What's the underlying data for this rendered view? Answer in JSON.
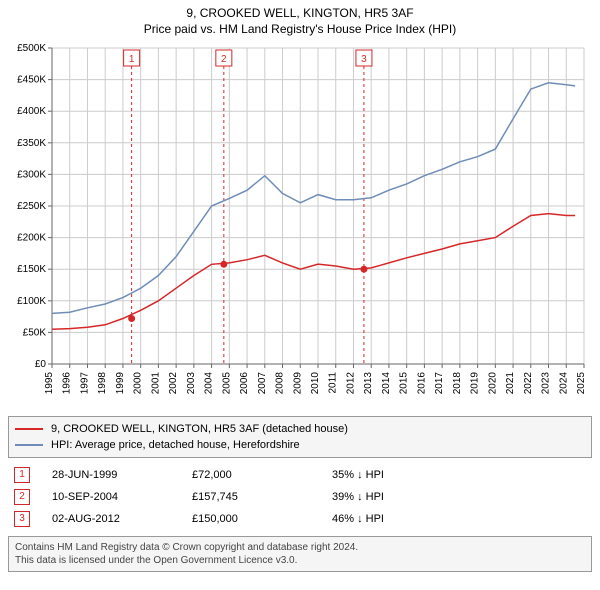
{
  "title": "9, CROOKED WELL, KINGTON, HR5 3AF",
  "subtitle": "Price paid vs. HM Land Registry's House Price Index (HPI)",
  "chart": {
    "type": "line",
    "background_color": "#ffffff",
    "gridline_color": "#cccccc",
    "axis_color": "#666666",
    "text_color": "#000000",
    "title_fontsize": 12,
    "label_fontsize": 10,
    "x_axis": {
      "min": 1995,
      "max": 2025,
      "ticks": [
        1995,
        1996,
        1997,
        1998,
        1999,
        2000,
        2001,
        2002,
        2003,
        2004,
        2005,
        2006,
        2007,
        2008,
        2009,
        2010,
        2011,
        2012,
        2013,
        2014,
        2015,
        2016,
        2017,
        2018,
        2019,
        2020,
        2021,
        2022,
        2023,
        2024,
        2025
      ]
    },
    "y_axis": {
      "min": 0,
      "max": 500000,
      "tick_step": 50000,
      "tick_labels": [
        "£0",
        "£50K",
        "£100K",
        "£150K",
        "£200K",
        "£250K",
        "£300K",
        "£350K",
        "£400K",
        "£450K",
        "£500K"
      ]
    },
    "series": [
      {
        "name": "price_paid",
        "label": "9, CROOKED WELL, KINGTON, HR5 3AF (detached house)",
        "color": "#d62728",
        "line_width": 1.5,
        "data": [
          [
            1995,
            55000
          ],
          [
            1996,
            56000
          ],
          [
            1997,
            58000
          ],
          [
            1998,
            62000
          ],
          [
            1999,
            72000
          ],
          [
            2000,
            85000
          ],
          [
            2001,
            100000
          ],
          [
            2002,
            120000
          ],
          [
            2003,
            140000
          ],
          [
            2004,
            157745
          ],
          [
            2005,
            160000
          ],
          [
            2006,
            165000
          ],
          [
            2007,
            172000
          ],
          [
            2008,
            160000
          ],
          [
            2009,
            150000
          ],
          [
            2010,
            158000
          ],
          [
            2011,
            155000
          ],
          [
            2012,
            150000
          ],
          [
            2013,
            152000
          ],
          [
            2014,
            160000
          ],
          [
            2015,
            168000
          ],
          [
            2016,
            175000
          ],
          [
            2017,
            182000
          ],
          [
            2018,
            190000
          ],
          [
            2019,
            195000
          ],
          [
            2020,
            200000
          ],
          [
            2021,
            218000
          ],
          [
            2022,
            235000
          ],
          [
            2023,
            238000
          ],
          [
            2024,
            235000
          ],
          [
            2024.5,
            235000
          ]
        ]
      },
      {
        "name": "hpi",
        "label": "HPI: Average price, detached house, Herefordshire",
        "color": "#6f8db8",
        "line_width": 1.5,
        "data": [
          [
            1995,
            80000
          ],
          [
            1996,
            82000
          ],
          [
            1997,
            89000
          ],
          [
            1998,
            95000
          ],
          [
            1999,
            105000
          ],
          [
            2000,
            120000
          ],
          [
            2001,
            140000
          ],
          [
            2002,
            170000
          ],
          [
            2003,
            210000
          ],
          [
            2004,
            250000
          ],
          [
            2005,
            262000
          ],
          [
            2006,
            275000
          ],
          [
            2007,
            298000
          ],
          [
            2008,
            270000
          ],
          [
            2009,
            255000
          ],
          [
            2010,
            268000
          ],
          [
            2011,
            260000
          ],
          [
            2012,
            260000
          ],
          [
            2013,
            263000
          ],
          [
            2014,
            275000
          ],
          [
            2015,
            285000
          ],
          [
            2016,
            298000
          ],
          [
            2017,
            308000
          ],
          [
            2018,
            320000
          ],
          [
            2019,
            328000
          ],
          [
            2020,
            340000
          ],
          [
            2021,
            388000
          ],
          [
            2022,
            435000
          ],
          [
            2023,
            445000
          ],
          [
            2024,
            442000
          ],
          [
            2024.5,
            440000
          ]
        ]
      }
    ],
    "markers": [
      {
        "id": "1",
        "x": 1999.49,
        "y": 72000,
        "color": "#d62728"
      },
      {
        "id": "2",
        "x": 2004.69,
        "y": 157745,
        "color": "#d62728"
      },
      {
        "id": "3",
        "x": 2012.59,
        "y": 150000,
        "color": "#d62728"
      }
    ],
    "callout_line_color": "#d62728",
    "callout_line_dash": "3,3"
  },
  "legend": {
    "items": [
      {
        "color": "#d62728",
        "label": "9, CROOKED WELL, KINGTON, HR5 3AF (detached house)"
      },
      {
        "color": "#6f8db8",
        "label": "HPI: Average price, detached house, Herefordshire"
      }
    ]
  },
  "callouts": [
    {
      "id": "1",
      "date": "28-JUN-1999",
      "price": "£72,000",
      "delta": "35% ↓ HPI"
    },
    {
      "id": "2",
      "date": "10-SEP-2004",
      "price": "£157,745",
      "delta": "39% ↓ HPI"
    },
    {
      "id": "3",
      "date": "02-AUG-2012",
      "price": "£150,000",
      "delta": "46% ↓ HPI"
    }
  ],
  "footer": {
    "line1": "Contains HM Land Registry data © Crown copyright and database right 2024.",
    "line2": "This data is licensed under the Open Government Licence v3.0."
  }
}
